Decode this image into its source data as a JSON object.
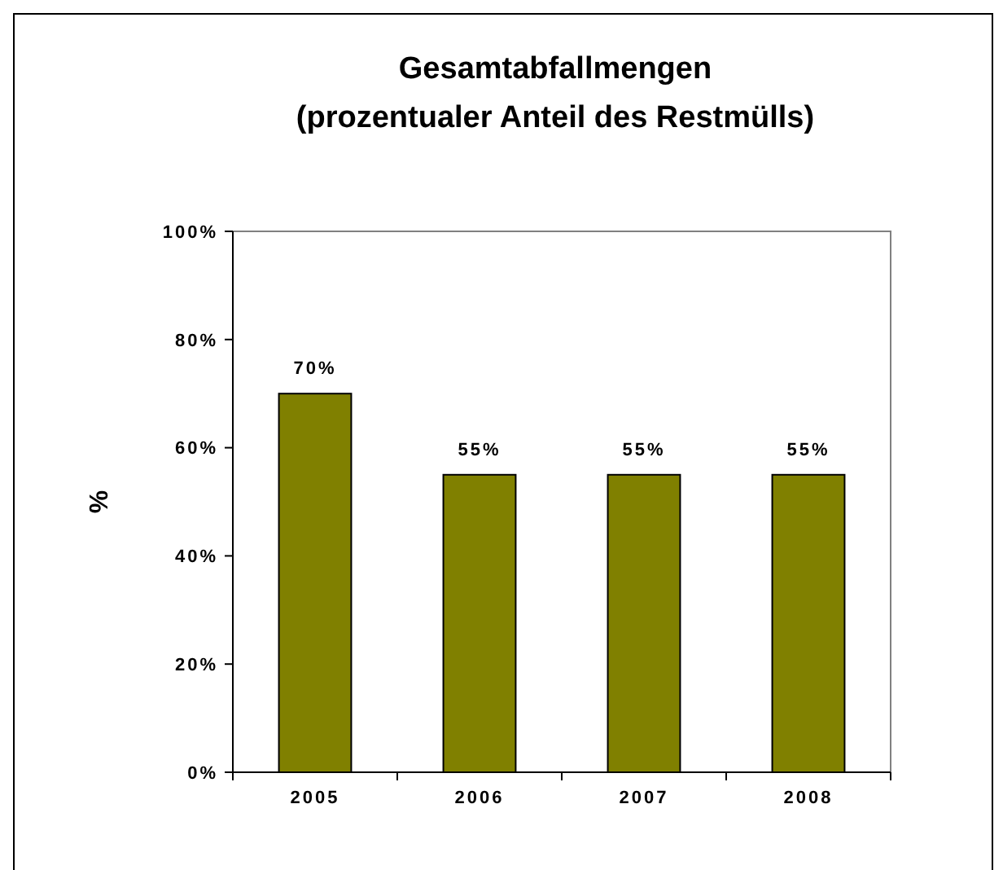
{
  "chart_data": {
    "type": "bar",
    "title": "Gesamtabfallmengen\n(prozentualer Anteil des Restmülls)",
    "ylabel": "%",
    "categories": [
      "2005",
      "2006",
      "2007",
      "2008"
    ],
    "values": [
      70,
      55,
      55,
      55
    ],
    "value_labels": [
      "70%",
      "55%",
      "55%",
      "55%"
    ],
    "color": "#808000",
    "ylim": [
      0,
      100
    ],
    "yticks": [
      {
        "value": 0,
        "label": "0%"
      },
      {
        "value": 20,
        "label": "20%"
      },
      {
        "value": 40,
        "label": "40%"
      },
      {
        "value": 60,
        "label": "60%"
      },
      {
        "value": 80,
        "label": "80%"
      },
      {
        "value": 100,
        "label": "100%"
      }
    ]
  }
}
